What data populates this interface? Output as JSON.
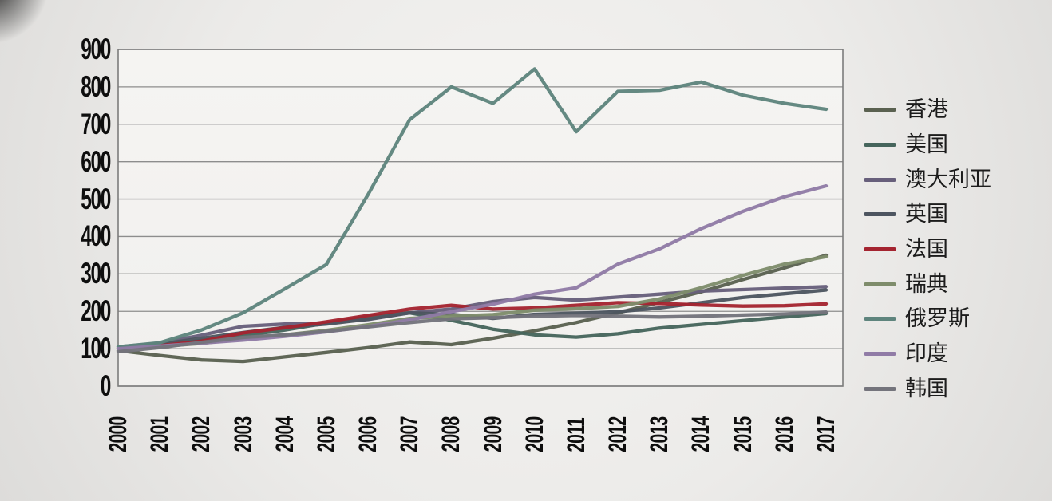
{
  "chart_data": {
    "type": "line",
    "title": "",
    "grid": true,
    "legend_position": "right",
    "ylim": [
      0,
      900
    ],
    "yticks": [
      0,
      100,
      200,
      300,
      400,
      500,
      600,
      700,
      800,
      900
    ],
    "x_labels": [
      "2000",
      "2001",
      "2002",
      "2003",
      "2004",
      "2005",
      "2006",
      "2007",
      "2008",
      "2009",
      "2010",
      "2011",
      "2012",
      "2013",
      "2014",
      "2015",
      "2016",
      "2017"
    ],
    "series": [
      {
        "id": "hong-kong",
        "name": "香港",
        "color": "#5a6150",
        "values": [
          95,
          82,
          70,
          66,
          78,
          90,
          103,
          118,
          111,
          128,
          148,
          170,
          196,
          224,
          252,
          285,
          316,
          350
        ]
      },
      {
        "id": "usa",
        "name": "美国",
        "color": "#46655c",
        "values": [
          100,
          110,
          122,
          135,
          150,
          168,
          186,
          196,
          176,
          152,
          137,
          131,
          140,
          155,
          165,
          175,
          185,
          194
        ]
      },
      {
        "id": "australia",
        "name": "澳大利亚",
        "color": "#675f7b",
        "values": [
          105,
          115,
          136,
          160,
          166,
          169,
          178,
          196,
          206,
          226,
          237,
          230,
          238,
          246,
          254,
          258,
          262,
          266
        ]
      },
      {
        "id": "uk",
        "name": "英国",
        "color": "#4d5560",
        "values": [
          100,
          112,
          128,
          143,
          157,
          166,
          179,
          196,
          192,
          181,
          192,
          195,
          199,
          209,
          223,
          237,
          247,
          257
        ]
      },
      {
        "id": "france",
        "name": "法国",
        "color": "#a42430",
        "values": [
          100,
          108,
          120,
          142,
          156,
          172,
          189,
          206,
          216,
          206,
          209,
          216,
          223,
          221,
          217,
          214,
          215,
          220
        ]
      },
      {
        "id": "sweden",
        "name": "瑞典",
        "color": "#7e8c6b",
        "values": [
          100,
          106,
          114,
          127,
          137,
          149,
          164,
          181,
          187,
          191,
          203,
          207,
          213,
          233,
          263,
          296,
          326,
          346
        ]
      },
      {
        "id": "russia",
        "name": "俄罗斯",
        "color": "#5e847d",
        "values": [
          105,
          116,
          150,
          196,
          260,
          325,
          512,
          712,
          800,
          756,
          848,
          680,
          788,
          791,
          813,
          778,
          756,
          740
        ]
      },
      {
        "id": "india",
        "name": "印度",
        "color": "#907ba6",
        "values": [
          100,
          107,
          115,
          123,
          133,
          145,
          159,
          177,
          199,
          219,
          246,
          263,
          326,
          367,
          421,
          467,
          506,
          535
        ]
      },
      {
        "id": "korea",
        "name": "韩国",
        "color": "#74747c",
        "values": [
          92,
          103,
          117,
          130,
          137,
          146,
          158,
          170,
          180,
          183,
          187,
          189,
          187,
          185,
          187,
          190,
          193,
          198
        ]
      }
    ]
  }
}
